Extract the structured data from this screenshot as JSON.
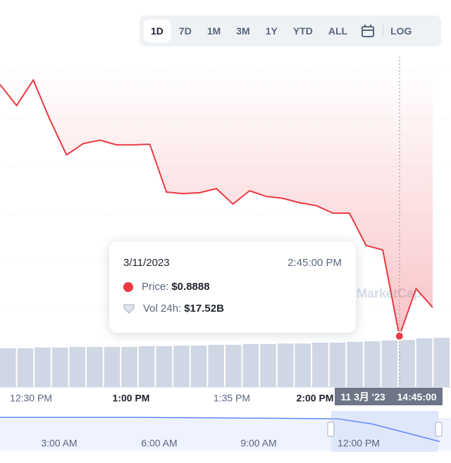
{
  "toolbar": {
    "buttons": [
      "1D",
      "7D",
      "1M",
      "3M",
      "1Y",
      "YTD",
      "ALL"
    ],
    "active": 0,
    "log": "LOG"
  },
  "chart_data": {
    "type": "line",
    "color": "#ea3943",
    "values": [
      0.9688,
      0.9621,
      0.9702,
      0.9576,
      0.9464,
      0.95,
      0.9511,
      0.9496,
      0.9496,
      0.9498,
      0.9346,
      0.9341,
      0.9344,
      0.9357,
      0.9308,
      0.935,
      0.9332,
      0.9326,
      0.9312,
      0.9303,
      0.9279,
      0.9279,
      0.9176,
      0.9162,
      0.8888,
      0.9039,
      0.8979
    ],
    "ylim": [
      0.88,
      0.98
    ],
    "x_labels": [
      "12:30 PM",
      "1:00 PM",
      "1:35 PM",
      "2:00 PM"
    ],
    "volume": {
      "color": "#cfd6e4",
      "values": [
        14.4,
        14.4,
        14.7,
        14.7,
        14.9,
        14.9,
        14.9,
        14.9,
        15.2,
        15.2,
        15.4,
        15.4,
        15.7,
        15.7,
        16.0,
        16.0,
        16.2,
        16.2,
        16.5,
        16.5,
        16.8,
        17.0,
        17.3,
        17.5,
        18.1,
        18.3
      ]
    },
    "watermark": "MarketCap"
  },
  "tooltip": {
    "date": "3/11/2023",
    "time": "2:45:00 PM",
    "price_label": "Price:",
    "price": "$0.8888",
    "vol_label": "Vol 24h:",
    "vol": "$17.52B"
  },
  "crosshair": {
    "date": "11 3月 '23",
    "time": "14:45:00"
  },
  "navigator": {
    "color": "#6188ff",
    "values": [
      1.0,
      1.0,
      1.0,
      1.0,
      1.0,
      0.999,
      0.998,
      0.997,
      0.996,
      0.995,
      0.993,
      0.97,
      0.93,
      0.89
    ],
    "ylim": [
      0.85,
      1.01
    ],
    "labels": [
      "3:00 AM",
      "6:00 AM",
      "9:00 AM",
      "12:00 PM"
    ]
  }
}
